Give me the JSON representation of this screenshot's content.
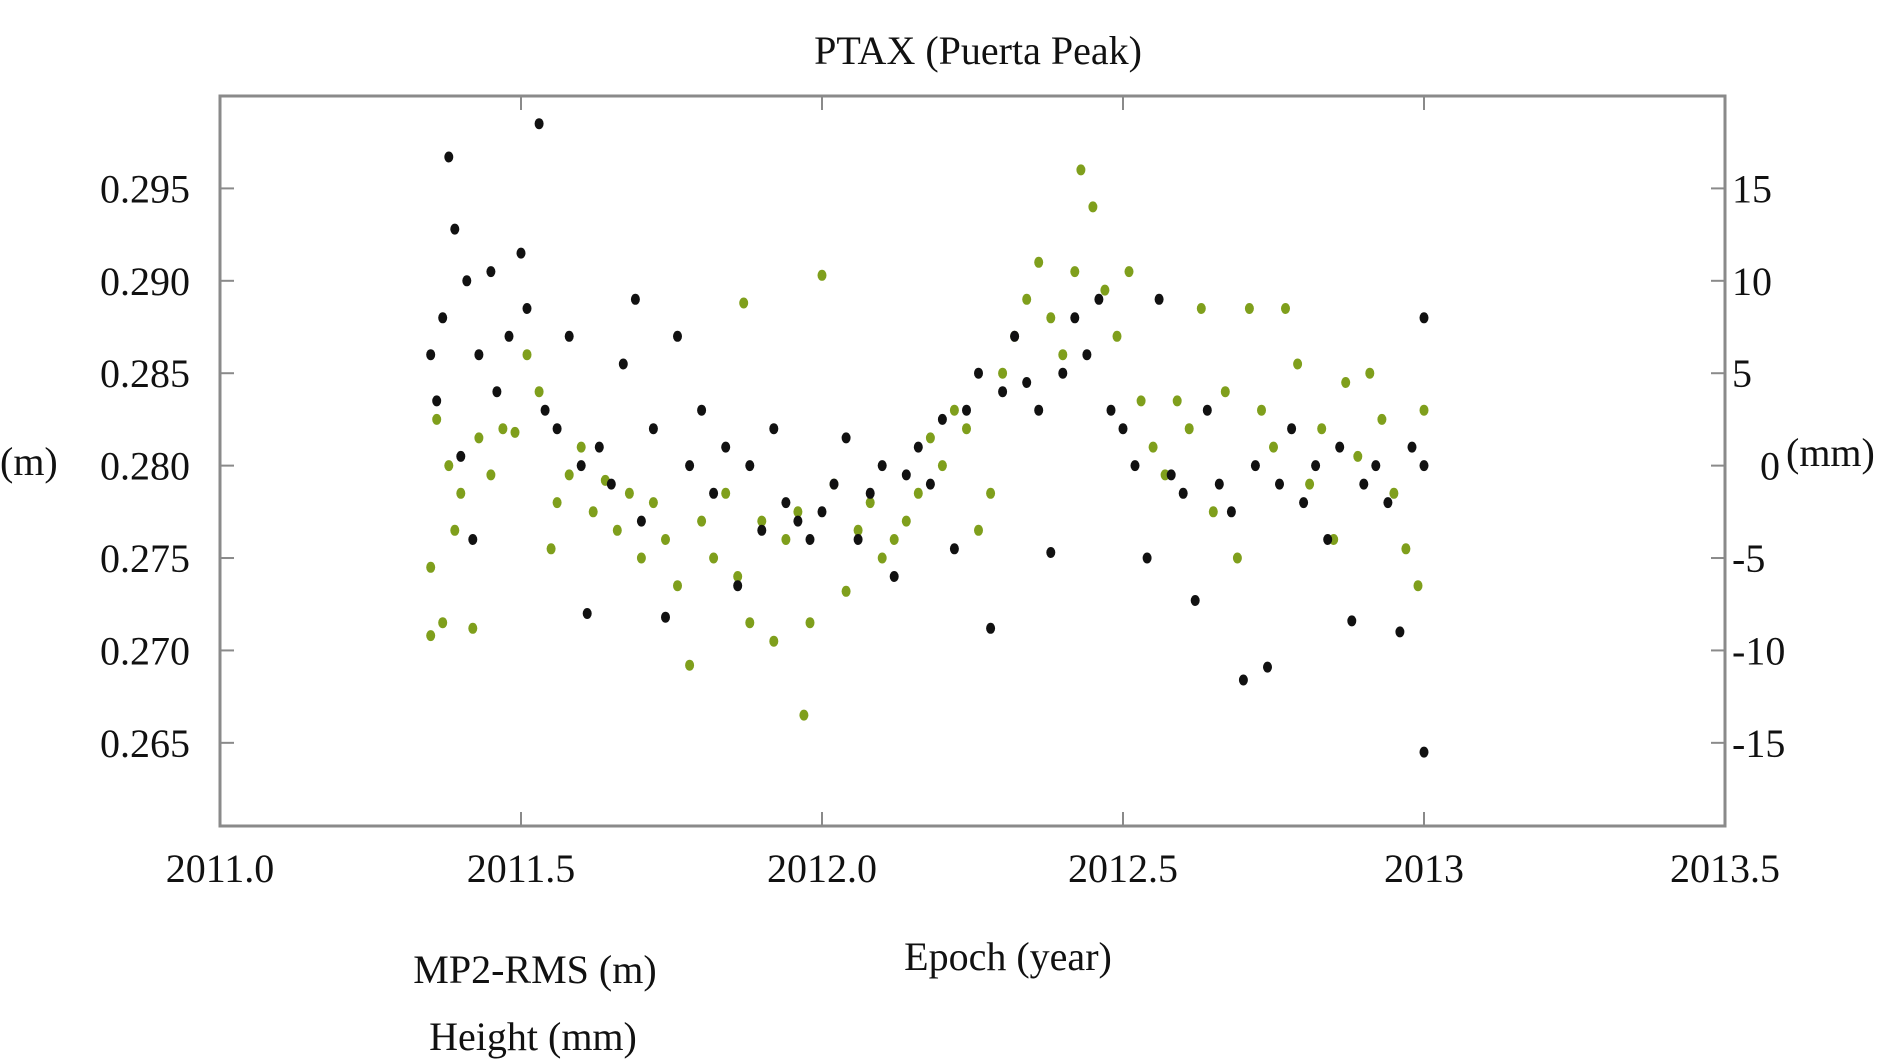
{
  "chart_data": {
    "type": "scatter",
    "title": "PTAX (Puerta Peak)",
    "xlabel": "Epoch (year)",
    "ylabel_left": "(m)",
    "ylabel_right": "(mm)",
    "xlim": [
      2011.0,
      2013.5
    ],
    "ylim_left": [
      0.2605,
      0.3
    ],
    "ylim_right": [
      -19.5,
      20.0
    ],
    "x_ticks": [
      2011.0,
      2011.5,
      2012.0,
      2012.5,
      2013.0,
      2013.5
    ],
    "x_tick_labels": [
      "2011.0",
      "2011.5",
      "2012.0",
      "2012.5",
      "2013",
      "2013.5"
    ],
    "y_left_ticks": [
      0.295,
      0.29,
      0.285,
      0.28,
      0.275,
      0.27,
      0.265
    ],
    "y_left_tick_labels": [
      "0.295",
      "0.290",
      "0.285",
      "0.280",
      "0.275",
      "0.270",
      "0.265"
    ],
    "y_right_ticks": [
      15,
      10,
      5,
      0,
      -5,
      -10,
      -15
    ],
    "y_right_tick_labels": [
      "15",
      "10",
      "5",
      "0",
      "-5",
      "-10",
      "-15"
    ],
    "grid": false,
    "legend_placement": "bottom-left",
    "legend": [
      "MP2-RMS (m)",
      "Height (mm)"
    ],
    "colors": {
      "mp2_rms": "#111111",
      "height": "#7f9f1c",
      "frame": "#8a8a8a"
    },
    "series": [
      {
        "name": "MP2-RMS (m)",
        "axis": "left",
        "color": "#111111",
        "points": [
          [
            2011.35,
            0.286
          ],
          [
            2011.36,
            0.2835
          ],
          [
            2011.37,
            0.288
          ],
          [
            2011.38,
            0.2967
          ],
          [
            2011.39,
            0.2928
          ],
          [
            2011.4,
            0.2805
          ],
          [
            2011.41,
            0.29
          ],
          [
            2011.42,
            0.276
          ],
          [
            2011.43,
            0.286
          ],
          [
            2011.45,
            0.2905
          ],
          [
            2011.46,
            0.284
          ],
          [
            2011.48,
            0.287
          ],
          [
            2011.5,
            0.2915
          ],
          [
            2011.51,
            0.2885
          ],
          [
            2011.53,
            0.2985
          ],
          [
            2011.54,
            0.283
          ],
          [
            2011.56,
            0.282
          ],
          [
            2011.58,
            0.287
          ],
          [
            2011.6,
            0.28
          ],
          [
            2011.61,
            0.272
          ],
          [
            2011.63,
            0.281
          ],
          [
            2011.65,
            0.279
          ],
          [
            2011.67,
            0.2855
          ],
          [
            2011.69,
            0.289
          ],
          [
            2011.7,
            0.277
          ],
          [
            2011.72,
            0.282
          ],
          [
            2011.74,
            0.2718
          ],
          [
            2011.76,
            0.287
          ],
          [
            2011.78,
            0.28
          ],
          [
            2011.8,
            0.283
          ],
          [
            2011.82,
            0.2785
          ],
          [
            2011.84,
            0.281
          ],
          [
            2011.86,
            0.2735
          ],
          [
            2011.88,
            0.28
          ],
          [
            2011.9,
            0.2765
          ],
          [
            2011.92,
            0.282
          ],
          [
            2011.94,
            0.278
          ],
          [
            2011.96,
            0.277
          ],
          [
            2011.98,
            0.276
          ],
          [
            2012.0,
            0.2775
          ],
          [
            2012.02,
            0.279
          ],
          [
            2012.04,
            0.2815
          ],
          [
            2012.06,
            0.276
          ],
          [
            2012.08,
            0.2785
          ],
          [
            2012.1,
            0.28
          ],
          [
            2012.12,
            0.274
          ],
          [
            2012.14,
            0.2795
          ],
          [
            2012.16,
            0.281
          ],
          [
            2012.18,
            0.279
          ],
          [
            2012.2,
            0.2825
          ],
          [
            2012.22,
            0.2755
          ],
          [
            2012.24,
            0.283
          ],
          [
            2012.26,
            0.285
          ],
          [
            2012.28,
            0.2712
          ],
          [
            2012.3,
            0.284
          ],
          [
            2012.32,
            0.287
          ],
          [
            2012.34,
            0.2845
          ],
          [
            2012.36,
            0.283
          ],
          [
            2012.38,
            0.2753
          ],
          [
            2012.4,
            0.285
          ],
          [
            2012.42,
            0.288
          ],
          [
            2012.44,
            0.286
          ],
          [
            2012.46,
            0.289
          ],
          [
            2012.48,
            0.283
          ],
          [
            2012.5,
            0.282
          ],
          [
            2012.52,
            0.28
          ],
          [
            2012.54,
            0.275
          ],
          [
            2012.56,
            0.289
          ],
          [
            2012.58,
            0.2795
          ],
          [
            2012.6,
            0.2785
          ],
          [
            2012.62,
            0.2727
          ],
          [
            2012.64,
            0.283
          ],
          [
            2012.66,
            0.279
          ],
          [
            2012.68,
            0.2775
          ],
          [
            2012.7,
            0.2684
          ],
          [
            2012.72,
            0.28
          ],
          [
            2012.74,
            0.2691
          ],
          [
            2012.76,
            0.279
          ],
          [
            2012.78,
            0.282
          ],
          [
            2012.8,
            0.278
          ],
          [
            2012.82,
            0.28
          ],
          [
            2012.84,
            0.276
          ],
          [
            2012.86,
            0.281
          ],
          [
            2012.88,
            0.2716
          ],
          [
            2012.9,
            0.279
          ],
          [
            2012.92,
            0.28
          ],
          [
            2012.94,
            0.278
          ],
          [
            2012.96,
            0.271
          ],
          [
            2012.98,
            0.281
          ],
          [
            2013.0,
            0.288
          ],
          [
            2013.0,
            0.2645
          ],
          [
            2013.0,
            0.28
          ]
        ]
      },
      {
        "name": "Height (mm)",
        "axis": "right",
        "color": "#7f9f1c",
        "points": [
          [
            2011.35,
            -9.2
          ],
          [
            2011.35,
            -5.5
          ],
          [
            2011.36,
            2.5
          ],
          [
            2011.37,
            -8.5
          ],
          [
            2011.38,
            0.0
          ],
          [
            2011.39,
            -3.5
          ],
          [
            2011.4,
            -1.5
          ],
          [
            2011.42,
            -8.8
          ],
          [
            2011.43,
            1.5
          ],
          [
            2011.45,
            -0.5
          ],
          [
            2011.47,
            2.0
          ],
          [
            2011.49,
            1.8
          ],
          [
            2011.51,
            6.0
          ],
          [
            2011.53,
            4.0
          ],
          [
            2011.55,
            -4.5
          ],
          [
            2011.56,
            -2.0
          ],
          [
            2011.58,
            -0.5
          ],
          [
            2011.6,
            1.0
          ],
          [
            2011.62,
            -2.5
          ],
          [
            2011.64,
            -0.8
          ],
          [
            2011.66,
            -3.5
          ],
          [
            2011.68,
            -1.5
          ],
          [
            2011.7,
            -5.0
          ],
          [
            2011.72,
            -2.0
          ],
          [
            2011.74,
            -4.0
          ],
          [
            2011.76,
            -6.5
          ],
          [
            2011.78,
            -10.8
          ],
          [
            2011.8,
            -3.0
          ],
          [
            2011.82,
            -5.0
          ],
          [
            2011.84,
            -1.5
          ],
          [
            2011.86,
            -6.0
          ],
          [
            2011.87,
            8.8
          ],
          [
            2011.88,
            -8.5
          ],
          [
            2011.9,
            -3.0
          ],
          [
            2011.92,
            -9.5
          ],
          [
            2011.94,
            -4.0
          ],
          [
            2011.96,
            -2.5
          ],
          [
            2011.97,
            -13.5
          ],
          [
            2011.98,
            -8.5
          ],
          [
            2012.0,
            10.3
          ],
          [
            2012.02,
            -1.0
          ],
          [
            2012.04,
            -6.8
          ],
          [
            2012.06,
            -3.5
          ],
          [
            2012.08,
            -2.0
          ],
          [
            2012.1,
            -5.0
          ],
          [
            2012.12,
            -4.0
          ],
          [
            2012.14,
            -3.0
          ],
          [
            2012.16,
            -1.5
          ],
          [
            2012.18,
            1.5
          ],
          [
            2012.2,
            0.0
          ],
          [
            2012.22,
            3.0
          ],
          [
            2012.24,
            2.0
          ],
          [
            2012.26,
            -3.5
          ],
          [
            2012.28,
            -1.5
          ],
          [
            2012.3,
            5.0
          ],
          [
            2012.32,
            7.0
          ],
          [
            2012.34,
            9.0
          ],
          [
            2012.36,
            11.0
          ],
          [
            2012.38,
            8.0
          ],
          [
            2012.4,
            6.0
          ],
          [
            2012.42,
            10.5
          ],
          [
            2012.43,
            16.0
          ],
          [
            2012.45,
            14.0
          ],
          [
            2012.47,
            9.5
          ],
          [
            2012.49,
            7.0
          ],
          [
            2012.51,
            10.5
          ],
          [
            2012.53,
            3.5
          ],
          [
            2012.55,
            1.0
          ],
          [
            2012.57,
            -0.5
          ],
          [
            2012.59,
            3.5
          ],
          [
            2012.61,
            2.0
          ],
          [
            2012.63,
            8.5
          ],
          [
            2012.65,
            -2.5
          ],
          [
            2012.67,
            4.0
          ],
          [
            2012.69,
            -5.0
          ],
          [
            2012.71,
            8.5
          ],
          [
            2012.73,
            3.0
          ],
          [
            2012.75,
            1.0
          ],
          [
            2012.77,
            8.5
          ],
          [
            2012.79,
            5.5
          ],
          [
            2012.81,
            -1.0
          ],
          [
            2012.83,
            2.0
          ],
          [
            2012.85,
            -4.0
          ],
          [
            2012.87,
            4.5
          ],
          [
            2012.89,
            0.5
          ],
          [
            2012.91,
            5.0
          ],
          [
            2012.93,
            2.5
          ],
          [
            2012.95,
            -1.5
          ],
          [
            2012.97,
            -4.5
          ],
          [
            2012.99,
            -6.5
          ],
          [
            2013.0,
            3.0
          ]
        ]
      }
    ]
  }
}
